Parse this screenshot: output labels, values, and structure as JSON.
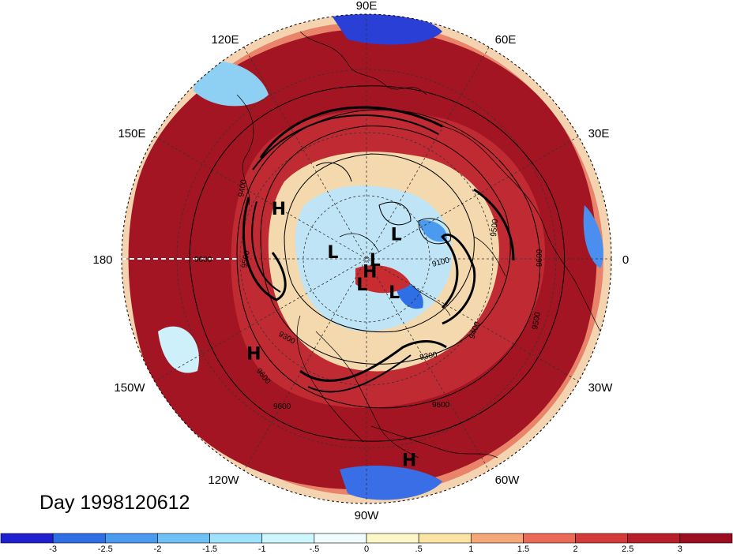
{
  "map": {
    "projection": "north-polar-stereographic",
    "date_label": "Day 1998120612",
    "longitude_labels": [
      "90E",
      "60E",
      "30E",
      "0",
      "30W",
      "60W",
      "90W",
      "120W",
      "150W",
      "180",
      "150E",
      "120E"
    ],
    "pressure_centers": [
      {
        "label": "H",
        "lon": 150,
        "lat": 45
      },
      {
        "label": "H",
        "lon": -140,
        "lat": 28
      },
      {
        "label": "H",
        "lon": -78,
        "lat": 10
      },
      {
        "label": "H",
        "lon": -75,
        "lat": 84
      },
      {
        "label": "L",
        "lon": 168,
        "lat": 74
      },
      {
        "label": "L",
        "lon": 40,
        "lat": 72
      },
      {
        "label": "L",
        "lon": -5,
        "lat": 86
      },
      {
        "label": "L",
        "lon": -50,
        "lat": 70
      },
      {
        "label": "L",
        "lon": -100,
        "lat": 78
      }
    ],
    "contour_labels": [
      "9600",
      "9500",
      "9300",
      "9400",
      "9600",
      "9300",
      "9400",
      "9500",
      "9600",
      "9600",
      "9100",
      "9500",
      "9600"
    ],
    "field_colors": {
      "ocean_warm": "#9c0e1f",
      "land_boundary": "#000000",
      "grid": "#333333"
    }
  },
  "colorbar": {
    "ticks": [
      "-3",
      "-2.5",
      "-2",
      "-1.5",
      "-1",
      "-.5",
      "0",
      ".5",
      "1",
      "1.5",
      "2",
      "2.5",
      "3"
    ],
    "colors": [
      "#1f1fcf",
      "#2f6fe6",
      "#4a9bf0",
      "#6ec0f5",
      "#9ee3fb",
      "#cdf6fd",
      "#effcfd",
      "#fdf6c6",
      "#fbe3a4",
      "#f5a778",
      "#ea6a55",
      "#d53a3a",
      "#b81e2a",
      "#9c0e1f"
    ]
  }
}
